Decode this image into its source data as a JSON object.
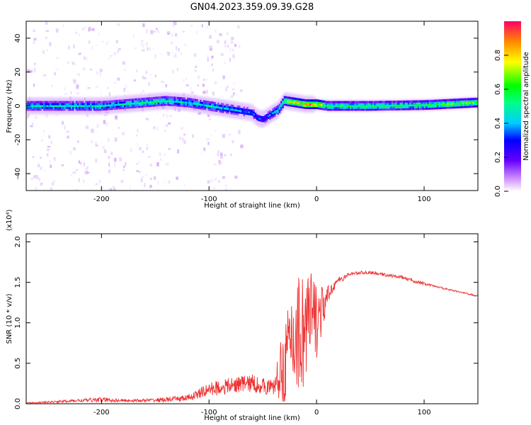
{
  "title": "GN04.2023.359.09.39.G28",
  "colors": {
    "snr_line": "#ee3333",
    "axis": "#000000"
  },
  "chart_data": [
    {
      "type": "heatmap",
      "xlabel": "Height of straight line (km)",
      "ylabel": "Frequency (Hz)",
      "xlim": [
        -270,
        150
      ],
      "ylim": [
        -50,
        50
      ],
      "xticks": [
        -200,
        -100,
        0,
        100
      ],
      "xtick_labels": [
        "-200",
        "-100",
        "0",
        "100"
      ],
      "yticks": [
        -40,
        -20,
        0,
        20,
        40
      ],
      "ytick_labels": [
        "-40",
        "-20",
        "0",
        "20",
        "40"
      ],
      "colorbar": {
        "label": "Normalized spectral amplitude",
        "range": [
          0,
          1
        ],
        "ticks": [
          0.0,
          0.2,
          0.4,
          0.6,
          0.8
        ],
        "tick_labels": [
          "0.0",
          "0.2",
          "0.4",
          "0.6",
          "0.8"
        ]
      },
      "ridge": {
        "x": [
          -270,
          -240,
          -200,
          -160,
          -140,
          -120,
          -100,
          -80,
          -60,
          -55,
          -50,
          -45,
          -40,
          -35,
          -30,
          -20,
          -10,
          0,
          10,
          50,
          100,
          150
        ],
        "freq_hz": [
          0,
          0,
          0,
          2,
          3,
          2,
          0,
          -2,
          -4,
          -7,
          -8,
          -6,
          -4,
          -2,
          3,
          2,
          1,
          1,
          0,
          0,
          0.5,
          2
        ],
        "amplitude": [
          0.45,
          0.45,
          0.45,
          0.5,
          0.5,
          0.45,
          0.45,
          0.4,
          0.35,
          0.3,
          0.3,
          0.35,
          0.4,
          0.45,
          0.6,
          0.75,
          0.8,
          0.8,
          0.55,
          0.55,
          0.55,
          0.65
        ]
      }
    },
    {
      "type": "line",
      "xlabel": "Height of straight line (km)",
      "ylabel": "SNR (10 * v/v)",
      "multiplier": "(x10⁴)",
      "xlim": [
        -270,
        150
      ],
      "ylim": [
        0,
        2.1
      ],
      "xticks": [
        -200,
        -100,
        0,
        100
      ],
      "xtick_labels": [
        "-200",
        "-100",
        "0",
        "100"
      ],
      "yticks": [
        0.0,
        0.5,
        1.0,
        1.5,
        2.0
      ],
      "ytick_labels": [
        "0.0",
        "0.5",
        "1.0",
        "1.5",
        "2.0"
      ],
      "series": [
        {
          "name": "SNR",
          "x": [
            -270,
            -250,
            -220,
            -200,
            -180,
            -160,
            -140,
            -120,
            -110,
            -100,
            -90,
            -80,
            -70,
            -60,
            -50,
            -40,
            -35,
            -30,
            -25,
            -20,
            -15,
            -10,
            -5,
            0,
            5,
            10,
            15,
            20,
            25,
            30,
            40,
            50,
            60,
            70,
            80,
            90,
            100,
            110,
            120,
            130,
            140,
            150
          ],
          "y": [
            0.01,
            0.02,
            0.04,
            0.05,
            0.04,
            0.04,
            0.05,
            0.07,
            0.12,
            0.18,
            0.2,
            0.22,
            0.25,
            0.25,
            0.22,
            0.2,
            0.35,
            0.5,
            0.7,
            0.85,
            0.9,
            0.95,
            1.0,
            1.05,
            1.15,
            1.3,
            1.45,
            1.52,
            1.55,
            1.6,
            1.62,
            1.62,
            1.6,
            1.58,
            1.56,
            1.52,
            1.48,
            1.45,
            1.42,
            1.39,
            1.36,
            1.33
          ],
          "noise": [
            0.005,
            0.01,
            0.02,
            0.03,
            0.02,
            0.02,
            0.03,
            0.04,
            0.06,
            0.08,
            0.1,
            0.1,
            0.1,
            0.12,
            0.1,
            0.1,
            0.3,
            0.5,
            0.6,
            0.7,
            0.8,
            0.9,
            0.7,
            0.5,
            0.3,
            0.15,
            0.08,
            0.04,
            0.03,
            0.02,
            0.02,
            0.02,
            0.02,
            0.02,
            0.02,
            0.02,
            0.02,
            0.01,
            0.01,
            0.01,
            0.01,
            0.01
          ]
        }
      ]
    }
  ]
}
